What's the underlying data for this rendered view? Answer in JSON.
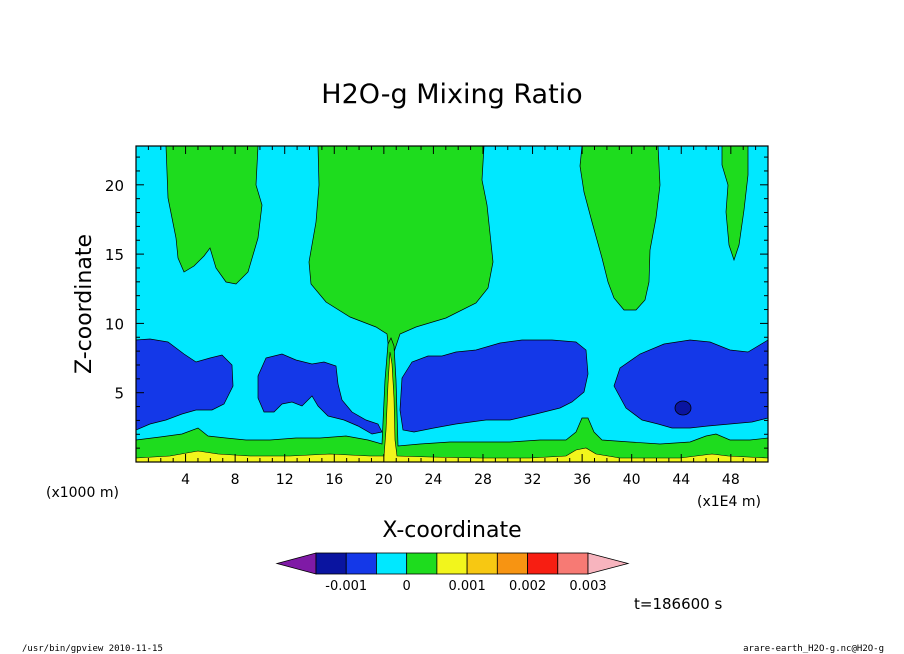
{
  "chart_data": {
    "type": "contour",
    "title": "H2O-g Mixing Ratio",
    "xlabel": "X-coordinate",
    "ylabel": "Z-coordinate",
    "x_unit_label": "(x1E4 m)",
    "y_unit_label": "(x1000 m)",
    "x_ticks": [
      "4",
      "8",
      "12",
      "16",
      "20",
      "24",
      "28",
      "32",
      "36",
      "40",
      "44",
      "48"
    ],
    "y_ticks": [
      "5",
      "10",
      "15",
      "20"
    ],
    "xlim": [
      0,
      51
    ],
    "ylim": [
      0,
      22.8
    ],
    "grid": false,
    "colorbar": {
      "tick_labels": [
        "-0.001",
        "0",
        "0.001",
        "0.002",
        "0.003"
      ],
      "colors": [
        "#7f1aa6",
        "#0a14a0",
        "#1438e8",
        "#00e8ff",
        "#1edc1e",
        "#f2f51c",
        "#f7c812",
        "#f79412",
        "#f71e12",
        "#f77a74",
        "#f7b4be"
      ]
    },
    "regions": [
      {
        "level": "lowest band",
        "color": "#f2f51c",
        "z_range": [
          0,
          0.7
        ]
      },
      {
        "level": "near-surface band",
        "color": "#1edc1e",
        "z_range": [
          0.5,
          2.3
        ]
      },
      {
        "level": "mid-level minimum",
        "color": "#1438e8",
        "z_range": [
          1.5,
          9.0
        ]
      },
      {
        "level": "background",
        "color": "#00e8ff",
        "z_range": [
          0,
          22.8
        ]
      },
      {
        "level": "upper plumes",
        "color": "#1edc1e",
        "x_centers": [
          6,
          20.5,
          38,
          49
        ]
      },
      {
        "level": "local minimum",
        "color": "#0a14a0",
        "x": 44.3,
        "z": 4.0
      }
    ]
  },
  "time_label": "t=186600 s",
  "footer": {
    "left": "/usr/bin/gpview   2010-11-15",
    "right": "arare-earth_H2O-g.nc@H2O-g"
  }
}
